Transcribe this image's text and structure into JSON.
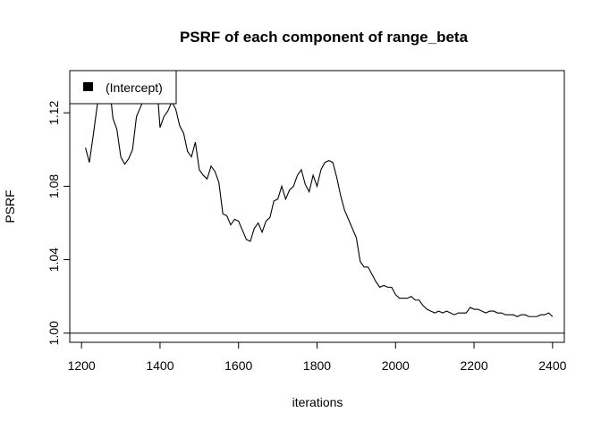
{
  "chart_data": {
    "type": "line",
    "title": "PSRF of each component of range_beta",
    "xlabel": "iterations",
    "ylabel": "PSRF",
    "xlim": [
      1170,
      2430
    ],
    "ylim": [
      0.995,
      1.143
    ],
    "x_ticks": [
      1200,
      1400,
      1600,
      1800,
      2000,
      2200,
      2400
    ],
    "y_ticks": [
      1.0,
      1.04,
      1.08,
      1.12
    ],
    "y_tick_labels": [
      "1.00",
      "1.04",
      "1.08",
      "1.12"
    ],
    "reference_line": 1.0,
    "legend": {
      "position": "top-left",
      "entries": [
        "(Intercept)"
      ]
    },
    "series": [
      {
        "name": "(Intercept)",
        "color": "#000000",
        "x": [
          1210,
          1220,
          1230,
          1240,
          1250,
          1260,
          1270,
          1280,
          1290,
          1300,
          1310,
          1320,
          1330,
          1340,
          1350,
          1360,
          1370,
          1380,
          1390,
          1400,
          1410,
          1420,
          1430,
          1440,
          1450,
          1460,
          1470,
          1480,
          1490,
          1500,
          1510,
          1520,
          1530,
          1540,
          1550,
          1560,
          1570,
          1580,
          1590,
          1600,
          1610,
          1620,
          1630,
          1640,
          1650,
          1660,
          1670,
          1680,
          1690,
          1700,
          1710,
          1720,
          1730,
          1740,
          1750,
          1760,
          1770,
          1780,
          1790,
          1800,
          1810,
          1820,
          1830,
          1840,
          1850,
          1860,
          1870,
          1880,
          1890,
          1900,
          1910,
          1920,
          1930,
          1940,
          1950,
          1960,
          1970,
          1980,
          1990,
          2000,
          2010,
          2020,
          2030,
          2040,
          2050,
          2060,
          2070,
          2080,
          2090,
          2100,
          2110,
          2120,
          2130,
          2140,
          2150,
          2160,
          2170,
          2180,
          2190,
          2200,
          2210,
          2220,
          2230,
          2240,
          2250,
          2260,
          2270,
          2280,
          2290,
          2300,
          2310,
          2320,
          2330,
          2340,
          2350,
          2360,
          2370,
          2380,
          2390,
          2400
        ],
        "values": [
          1.101,
          1.093,
          1.108,
          1.124,
          1.14,
          1.141,
          1.137,
          1.117,
          1.111,
          1.096,
          1.092,
          1.095,
          1.1,
          1.118,
          1.123,
          1.128,
          1.136,
          1.142,
          1.141,
          1.112,
          1.118,
          1.121,
          1.126,
          1.122,
          1.113,
          1.109,
          1.099,
          1.096,
          1.104,
          1.089,
          1.086,
          1.084,
          1.091,
          1.088,
          1.082,
          1.065,
          1.064,
          1.059,
          1.062,
          1.061,
          1.056,
          1.051,
          1.05,
          1.057,
          1.06,
          1.055,
          1.061,
          1.063,
          1.072,
          1.073,
          1.08,
          1.073,
          1.078,
          1.08,
          1.086,
          1.089,
          1.081,
          1.077,
          1.086,
          1.08,
          1.089,
          1.093,
          1.094,
          1.093,
          1.085,
          1.075,
          1.067,
          1.062,
          1.057,
          1.052,
          1.039,
          1.036,
          1.036,
          1.032,
          1.028,
          1.025,
          1.026,
          1.025,
          1.025,
          1.021,
          1.019,
          1.019,
          1.019,
          1.02,
          1.018,
          1.018,
          1.015,
          1.013,
          1.012,
          1.011,
          1.012,
          1.011,
          1.012,
          1.011,
          1.01,
          1.011,
          1.011,
          1.011,
          1.014,
          1.013,
          1.013,
          1.012,
          1.011,
          1.012,
          1.012,
          1.011,
          1.011,
          1.01,
          1.01,
          1.01,
          1.009,
          1.01,
          1.01,
          1.009,
          1.009,
          1.009,
          1.01,
          1.01,
          1.011,
          1.009
        ]
      }
    ]
  }
}
